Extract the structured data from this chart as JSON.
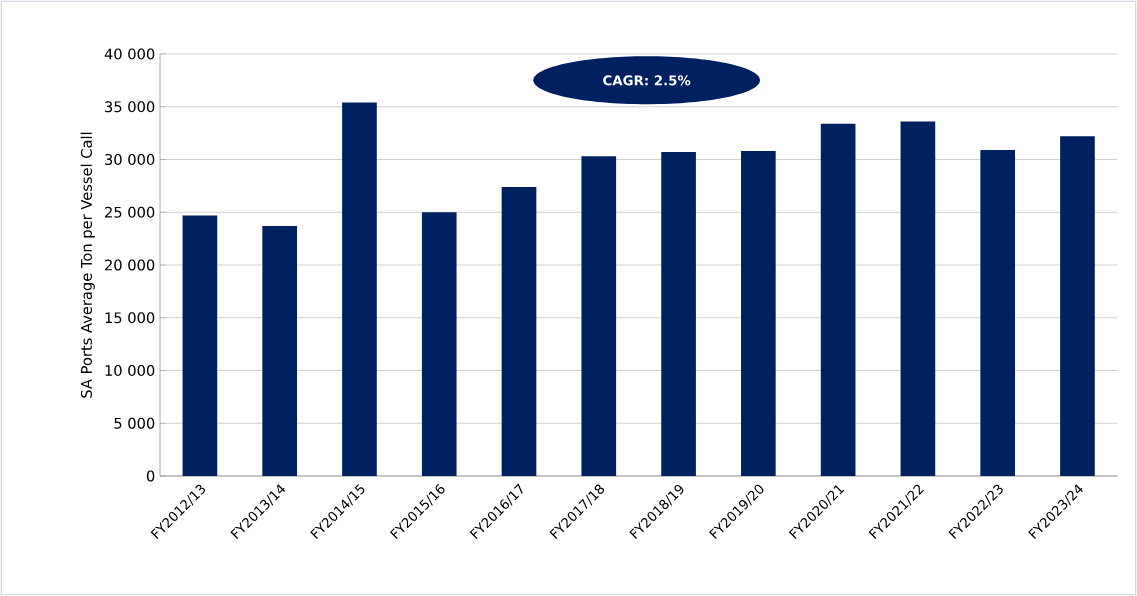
{
  "chart_data": {
    "type": "bar",
    "ylabel": "SA Ports Average Ton per Vessel Call",
    "categories": [
      "FY2012/13",
      "FY2013/14",
      "FY2014/15",
      "FY2015/16",
      "FY2016/17",
      "FY2017/18",
      "FY2018/19",
      "FY2019/20",
      "FY2020/21",
      "FY2021/22",
      "FY2022/23",
      "FY2023/24"
    ],
    "values": [
      24700,
      23700,
      35400,
      25000,
      27400,
      30300,
      30700,
      30800,
      33400,
      33600,
      30900,
      32200
    ],
    "color": "#002060",
    "ylim": [
      0,
      40000
    ],
    "yticks": [
      {
        "value": 0,
        "label": "0"
      },
      {
        "value": 5000,
        "label": "5 000"
      },
      {
        "value": 10000,
        "label": "10 000"
      },
      {
        "value": 15000,
        "label": "15 000"
      },
      {
        "value": 20000,
        "label": "20 000"
      },
      {
        "value": 25000,
        "label": "25 000"
      },
      {
        "value": 30000,
        "label": "30 000"
      },
      {
        "value": 35000,
        "label": "35 000"
      },
      {
        "value": 40000,
        "label": "40 000"
      }
    ],
    "grid": "y",
    "annotations": [
      "CAGR: 2.5%"
    ]
  }
}
